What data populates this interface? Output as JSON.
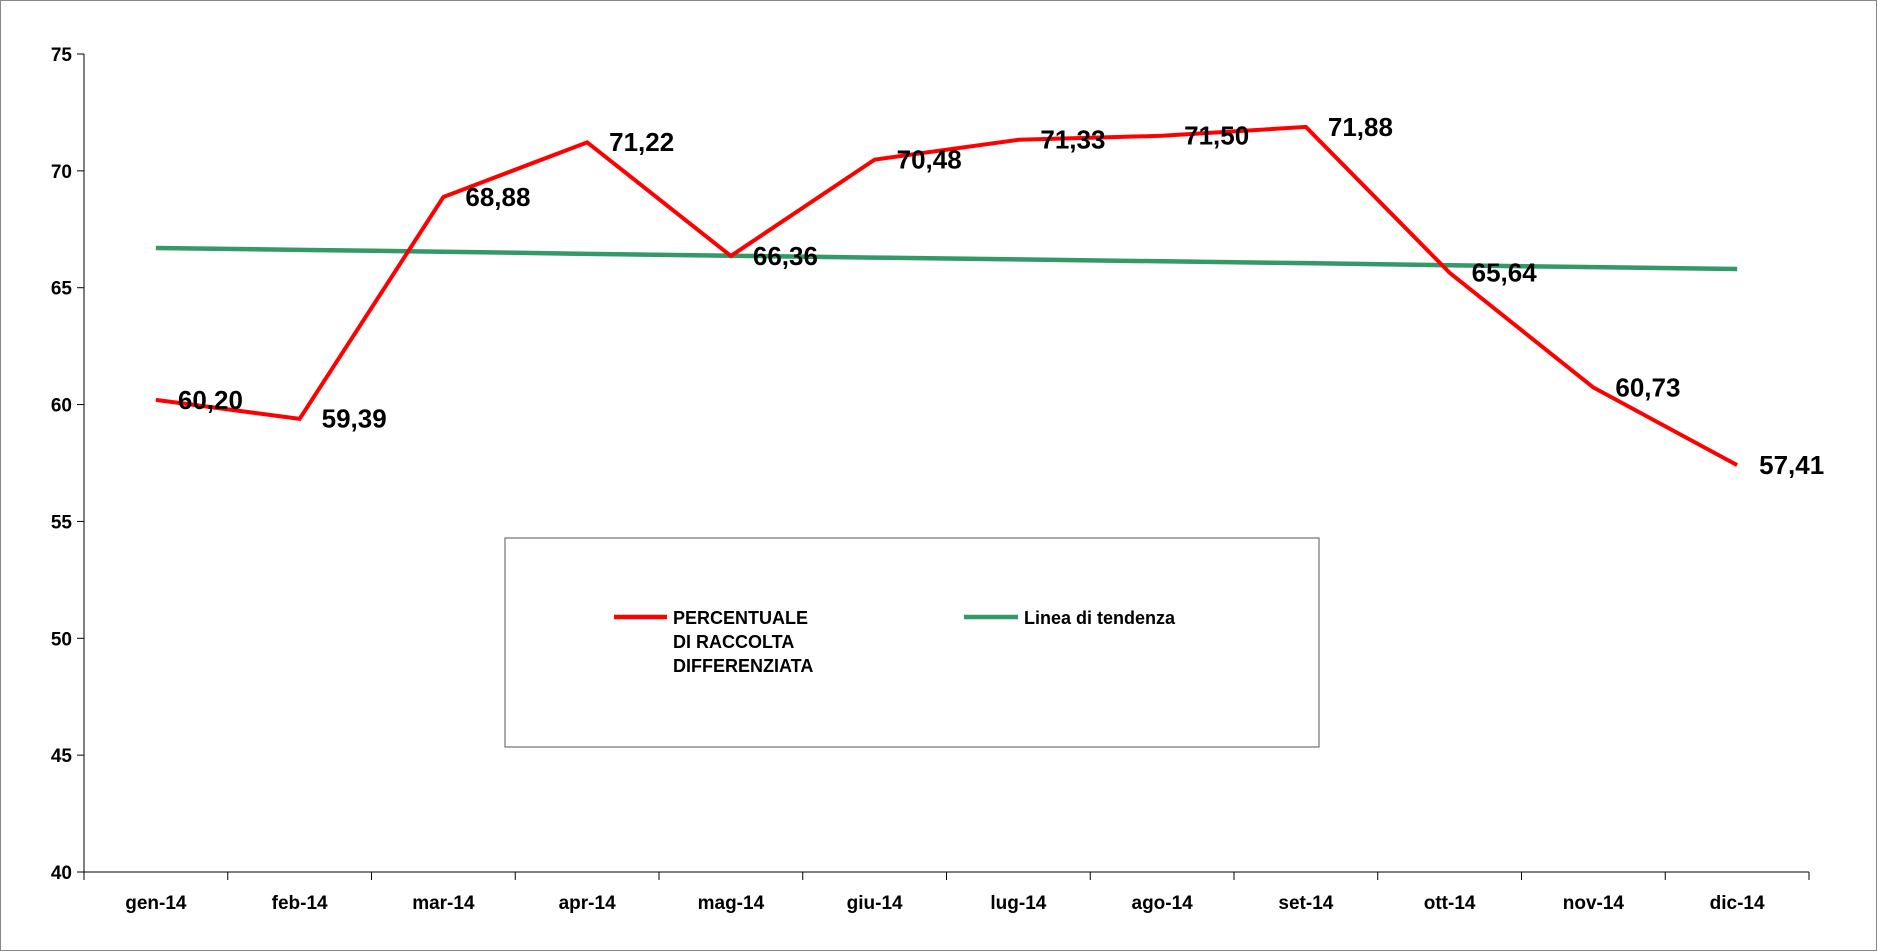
{
  "chart_data": {
    "type": "line",
    "categories": [
      "gen-14",
      "feb-14",
      "mar-14",
      "apr-14",
      "mag-14",
      "giu-14",
      "lug-14",
      "ago-14",
      "set-14",
      "ott-14",
      "nov-14",
      "dic-14"
    ],
    "series": [
      {
        "name": "PERCENTUALE DI RACCOLTA DIFFERENZIATA",
        "color": "#ff0000",
        "values": [
          60.2,
          59.39,
          68.88,
          71.22,
          66.36,
          70.48,
          71.33,
          71.5,
          71.88,
          65.64,
          60.73,
          57.41
        ],
        "value_labels": [
          "60,20",
          "59,39",
          "68,88",
          "71,22",
          "66,36",
          "70,48",
          "71,33",
          "71,50",
          "71,88",
          "65,64",
          "60,73",
          "57,41"
        ]
      },
      {
        "name": "Linea di tendenza",
        "color": "#339966",
        "values": [
          66.7,
          66.62,
          66.54,
          66.45,
          66.37,
          66.29,
          66.21,
          66.13,
          66.05,
          65.96,
          65.88,
          65.8
        ]
      }
    ],
    "ylim": [
      40,
      75
    ],
    "yticks": [
      40,
      45,
      50,
      55,
      60,
      65,
      70,
      75
    ],
    "grid": false
  }
}
